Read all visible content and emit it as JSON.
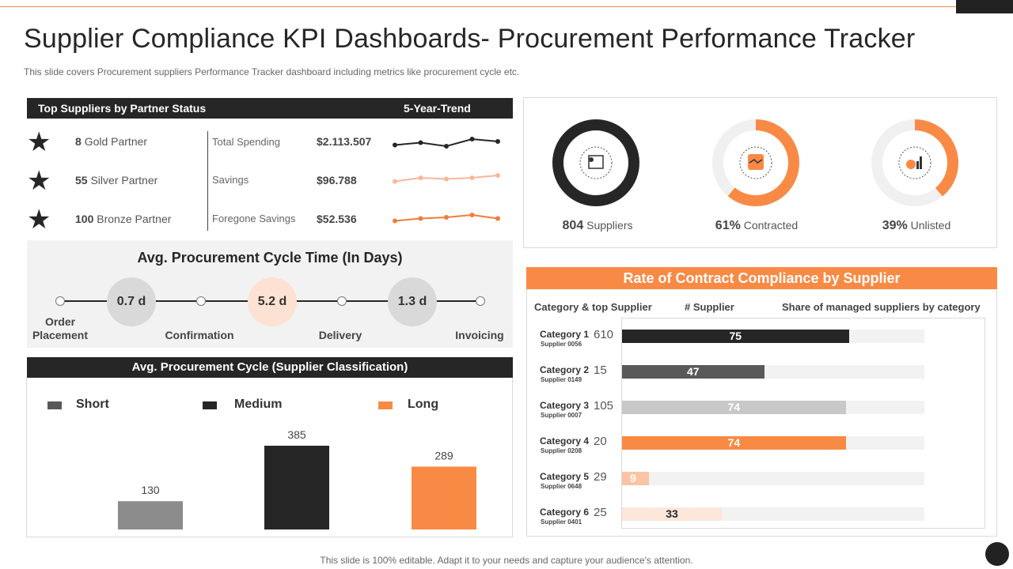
{
  "title": "Supplier Compliance KPI Dashboards- Procurement Performance Tracker",
  "subtitle": "This slide covers Procurement suppliers Performance Tracker dashboard including metrics like procurement cycle etc.",
  "top_suppliers": {
    "header": "Top Suppliers by Partner Status",
    "trend_header": "5-Year-Trend",
    "partners": [
      {
        "count": "8",
        "label": "Gold Partner",
        "icon": "star-icon"
      },
      {
        "count": "55",
        "label": "Silver Partner",
        "icon": "star-icon"
      },
      {
        "count": "100",
        "label": "Bronze Partner",
        "icon": "star-icon"
      }
    ],
    "metrics": [
      {
        "label": "Total Spending",
        "value": "$2.113.507",
        "trend": [
          3,
          5,
          2,
          8,
          6
        ],
        "color": "#262626"
      },
      {
        "label": "Savings",
        "value": "$96.788",
        "trend": [
          3,
          6,
          5,
          6,
          8
        ],
        "color": "#f8b79a"
      },
      {
        "label": "Foregone Savings",
        "value": "$52.536",
        "trend": [
          3,
          5,
          6,
          8,
          5
        ],
        "color": "#f07c3c"
      }
    ]
  },
  "cycle_time": {
    "title": "Avg. Procurement Cycle Time (In Days)",
    "steps": [
      "Order\nPlacement",
      "Confirmation",
      "Delivery",
      "Invoicing"
    ],
    "durations": [
      {
        "value": "0.7 d",
        "color": "#d9d9d9"
      },
      {
        "value": "5.2 d",
        "color": "#fde2d4"
      },
      {
        "value": "1.3 d",
        "color": "#d9d9d9"
      }
    ]
  },
  "classification": {
    "header": "Avg. Procurement Cycle (Supplier Classification)",
    "legend": [
      {
        "label": "Short",
        "color": "#595959"
      },
      {
        "label": "Medium",
        "color": "#262626"
      },
      {
        "label": "Long",
        "color": "#f98a45"
      }
    ]
  },
  "chart_data": {
    "type": "bar",
    "categories": [
      "Short",
      "Medium",
      "Long"
    ],
    "values": [
      130,
      385,
      289
    ],
    "colors": [
      "#8c8c8c",
      "#262626",
      "#f98a45"
    ],
    "ylim": [
      0,
      400
    ],
    "grid": false
  },
  "kpis": [
    {
      "value": "804",
      "label": "Suppliers",
      "percent": 100,
      "color": "#262626",
      "icon": "supplier-icon"
    },
    {
      "value": "61%",
      "label": "Contracted",
      "percent": 61,
      "color": "#f98a45",
      "icon": "handshake-icon"
    },
    {
      "value": "39%",
      "label": "Unlisted",
      "percent": 39,
      "color": "#f98a45",
      "icon": "growth-chart-icon"
    }
  ],
  "compliance": {
    "header": "Rate of Contract Compliance by Supplier",
    "columns": [
      "Category & top Supplier",
      "# Supplier",
      "Share of managed suppliers by category"
    ],
    "rows": [
      {
        "category": "Category 1",
        "supplier": "Supplier 0056",
        "count": "610",
        "share": 75,
        "color": "#262626",
        "text_color": "#ffffff"
      },
      {
        "category": "Category 2",
        "supplier": "Supplier 0149",
        "count": "15",
        "share": 47,
        "color": "#595959",
        "text_color": "#ffffff"
      },
      {
        "category": "Category 3",
        "supplier": "Supplier 0007",
        "count": "105",
        "share": 74,
        "color": "#c8c8c8",
        "text_color": "#ffffff"
      },
      {
        "category": "Category 4",
        "supplier": "Supplier 0208",
        "count": "20",
        "share": 74,
        "color": "#f98a45",
        "text_color": "#ffffff"
      },
      {
        "category": "Category 5",
        "supplier": "Supplier 0648",
        "count": "29",
        "share": 9,
        "color": "#fbc4a4",
        "text_color": "#ffffff"
      },
      {
        "category": "Category 6",
        "supplier": "Supplier 0401",
        "count": "25",
        "share": 33,
        "color": "#fde6da",
        "text_color": "#262626"
      }
    ]
  },
  "footer": "This slide is 100% editable. Adapt it to your needs and capture your audience's attention."
}
